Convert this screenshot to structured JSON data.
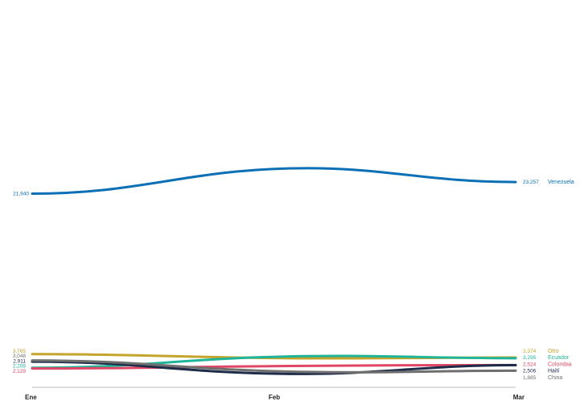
{
  "chart_data": {
    "type": "line",
    "categories": [
      "Ene",
      "Feb",
      "Mar"
    ],
    "ylim": [
      0,
      26000
    ],
    "grid": false,
    "legend": "inline-right",
    "series": [
      {
        "name": "Venezuela",
        "values": [
          21940,
          24800,
          23257
        ],
        "labels": {
          "start": "21,940",
          "end": "23,257"
        },
        "color": "#0a6fb5"
      },
      {
        "name": "Otro",
        "values": [
          3765,
          3300,
          3374
        ],
        "labels": {
          "start": "3,765",
          "end": "3,374"
        },
        "color": "#c4a42a"
      },
      {
        "name": "Ecuador",
        "values": [
          2208,
          3500,
          3295
        ],
        "labels": {
          "start": "2,208",
          "end": "3,295"
        },
        "color": "#20b59a"
      },
      {
        "name": "Colombia",
        "values": [
          2129,
          2420,
          2524
        ],
        "labels": {
          "start": "2,129",
          "end": "2,524"
        },
        "color": "#e04766"
      },
      {
        "name": "Haití",
        "values": [
          2911,
          1520,
          2506
        ],
        "labels": {
          "start": "2,911",
          "end": "2,506"
        },
        "color": "#1e2c4a"
      },
      {
        "name": "China",
        "values": [
          3048,
          1780,
          1885
        ],
        "labels": {
          "start": "3,048",
          "end": "1,885"
        },
        "color": "#6f6f6f"
      }
    ]
  }
}
